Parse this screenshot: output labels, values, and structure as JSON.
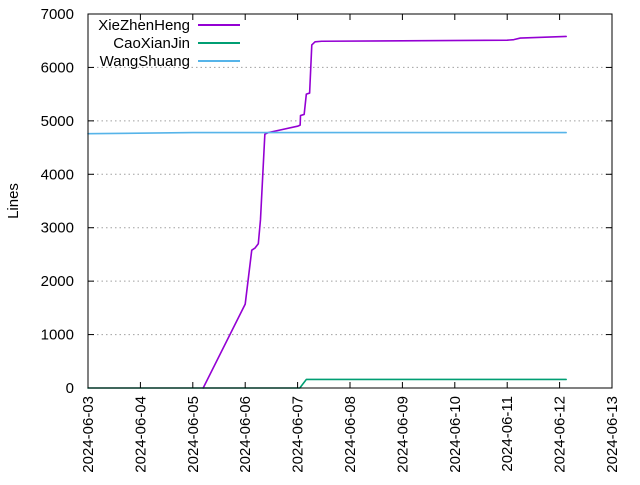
{
  "chart_data": {
    "type": "line",
    "title": "",
    "xlabel": "",
    "ylabel": "Lines",
    "x_range": [
      "2024-06-03",
      "2024-06-13"
    ],
    "ylim": [
      0,
      7000
    ],
    "x_ticks": [
      "2024-06-03",
      "2024-06-04",
      "2024-06-05",
      "2024-06-06",
      "2024-06-07",
      "2024-06-08",
      "2024-06-09",
      "2024-06-10",
      "2024-06-11",
      "2024-06-12",
      "2024-06-13"
    ],
    "y_ticks": [
      0,
      1000,
      2000,
      3000,
      4000,
      5000,
      6000,
      7000
    ],
    "grid": "horizontal dotted",
    "legend_position": "top-left",
    "series": [
      {
        "name": "XieZhenHeng",
        "color": "#9400d3",
        "points": [
          [
            "2024-06-05 04:45",
            0
          ],
          [
            "2024-06-06 00:00",
            1570
          ],
          [
            "2024-06-06 03:00",
            2580
          ],
          [
            "2024-06-06 04:30",
            2620
          ],
          [
            "2024-06-06 06:00",
            2700
          ],
          [
            "2024-06-06 07:00",
            3150
          ],
          [
            "2024-06-06 09:00",
            4750
          ],
          [
            "2024-06-06 10:30",
            4780
          ],
          [
            "2024-06-07 00:00",
            4900
          ],
          [
            "2024-06-07 01:10",
            4920
          ],
          [
            "2024-06-07 01:20",
            5100
          ],
          [
            "2024-06-07 03:00",
            5120
          ],
          [
            "2024-06-07 04:00",
            5500
          ],
          [
            "2024-06-07 05:30",
            5520
          ],
          [
            "2024-06-07 06:30",
            6420
          ],
          [
            "2024-06-07 08:00",
            6480
          ],
          [
            "2024-06-07 11:00",
            6490
          ],
          [
            "2024-06-11 00:00",
            6510
          ],
          [
            "2024-06-11 03:00",
            6520
          ],
          [
            "2024-06-11 06:00",
            6550
          ],
          [
            "2024-06-12 03:00",
            6580
          ]
        ]
      },
      {
        "name": "CaoXianJin",
        "color": "#009e73",
        "points": [
          [
            "2024-06-03 00:00",
            0
          ],
          [
            "2024-06-07 01:00",
            0
          ],
          [
            "2024-06-07 04:00",
            160
          ],
          [
            "2024-06-12 03:00",
            160
          ]
        ]
      },
      {
        "name": "WangShuang",
        "color": "#56b4e9",
        "points": [
          [
            "2024-06-03 00:00",
            4760
          ],
          [
            "2024-06-05 00:00",
            4780
          ],
          [
            "2024-06-12 03:00",
            4780
          ]
        ]
      }
    ]
  }
}
